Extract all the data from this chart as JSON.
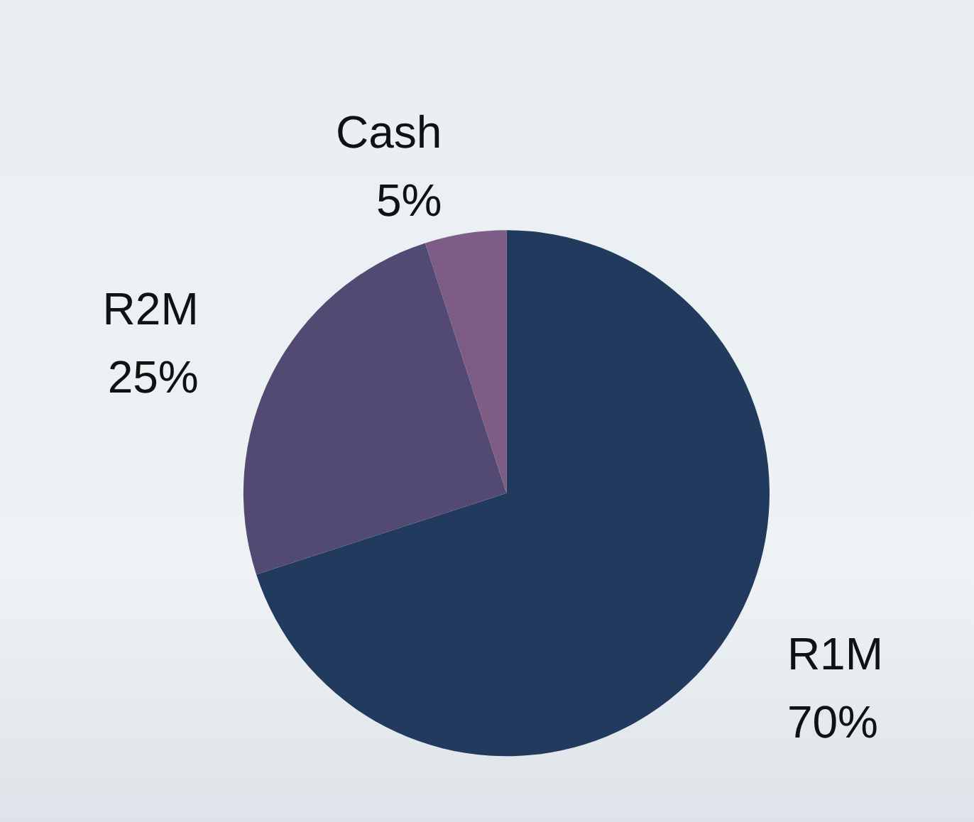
{
  "chart_data": {
    "type": "pie",
    "categories": [
      "R1M",
      "R2M",
      "Cash"
    ],
    "values": [
      70,
      25,
      5
    ],
    "colors": [
      "#223a5e",
      "#524a72",
      "#7d5c85"
    ],
    "value_labels": [
      "70%",
      "25%",
      "5%"
    ],
    "legend": false
  }
}
